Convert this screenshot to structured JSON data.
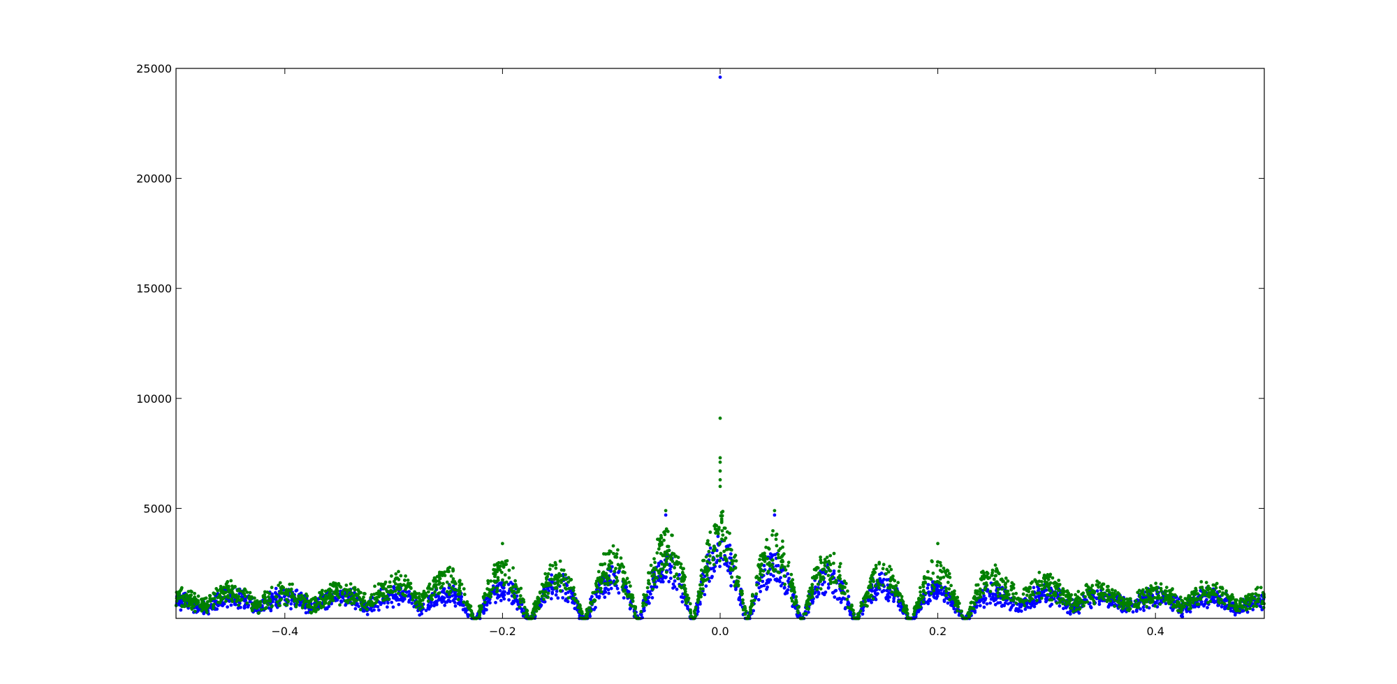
{
  "chart_data": {
    "type": "scatter",
    "title": "",
    "xlabel": "",
    "ylabel": "",
    "xlim": [
      -0.5,
      0.5
    ],
    "ylim": [
      0,
      25000
    ],
    "x_ticks": [
      -0.4,
      -0.2,
      0.0,
      0.2,
      0.4
    ],
    "x_tick_labels": [
      "−0.4",
      "−0.2",
      "0.0",
      "0.2",
      "0.4"
    ],
    "y_ticks": [
      5000,
      10000,
      15000,
      20000,
      25000
    ],
    "y_tick_labels": [
      "5000",
      "10000",
      "15000",
      "20000",
      "25000"
    ],
    "grid": false,
    "legend": "none",
    "series": [
      {
        "color": "#0000ff",
        "envelope": {
          "description_points": [],
          "x": [
            -0.5,
            -0.45,
            -0.4,
            -0.35,
            -0.3,
            -0.25,
            -0.2,
            -0.15,
            -0.1,
            -0.05,
            0.0,
            0.05,
            0.1,
            0.15,
            0.2,
            0.25,
            0.3,
            0.35,
            0.4,
            0.45,
            0.5
          ],
          "peak_y": [
            1300,
            1500,
            1500,
            1500,
            1600,
            1700,
            1900,
            2200,
            2600,
            3200,
            4300,
            3200,
            2600,
            2200,
            1900,
            1700,
            1600,
            1500,
            1500,
            1500,
            1300
          ],
          "null_x": [
            -0.025,
            -0.075,
            -0.125,
            -0.175,
            -0.225,
            0.025,
            0.075,
            0.125,
            0.175,
            0.225
          ]
        },
        "outliers": [
          [
            0.0,
            24600
          ],
          [
            -0.05,
            4700
          ],
          [
            0.05,
            4700
          ]
        ]
      },
      {
        "color": "#008000",
        "envelope": {
          "description_points": [],
          "x": [
            -0.5,
            -0.45,
            -0.4,
            -0.35,
            -0.3,
            -0.25,
            -0.2,
            -0.15,
            -0.1,
            -0.05,
            0.0,
            0.05,
            0.1,
            0.15,
            0.2,
            0.25,
            0.3,
            0.35,
            0.4,
            0.45,
            0.5
          ],
          "peak_y": [
            1500,
            1800,
            1700,
            1800,
            2200,
            2500,
            2900,
            2700,
            3400,
            4200,
            5200,
            4200,
            3400,
            2700,
            2900,
            2500,
            2200,
            1800,
            1700,
            1800,
            1500
          ],
          "null_x": [
            -0.025,
            -0.075,
            -0.125,
            -0.175,
            -0.225,
            0.025,
            0.075,
            0.125,
            0.175,
            0.225
          ]
        },
        "outliers": [
          [
            0.0,
            9100
          ],
          [
            0.0,
            7300
          ],
          [
            0.0,
            7100
          ],
          [
            0.0,
            6700
          ],
          [
            0.0,
            6300
          ],
          [
            0.0,
            6000
          ],
          [
            -0.05,
            4900
          ],
          [
            0.05,
            4900
          ],
          [
            -0.2,
            3400
          ],
          [
            0.2,
            3400
          ]
        ]
      }
    ]
  }
}
